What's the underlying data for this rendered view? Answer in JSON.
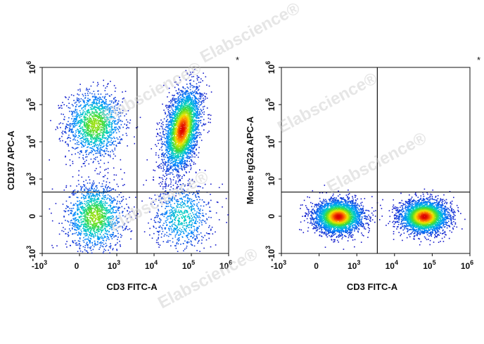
{
  "watermark": "Elabscience®",
  "chart_data": [
    {
      "type": "scatter",
      "subtype": "flow-cytometry-density-dot-plot",
      "xlabel": "CD3 FITC-A",
      "ylabel": "CD197 APC-A",
      "marker": "*",
      "x_scale": "biexponential",
      "y_scale": "biexponential",
      "xlim": [
        -1000,
        1000000
      ],
      "ylim": [
        -1000,
        1000000
      ],
      "x_ticks": [
        {
          "base": "-10",
          "exp": "3",
          "value": -1000
        },
        {
          "base": "0",
          "exp": "",
          "value": 0
        },
        {
          "base": "10",
          "exp": "3",
          "value": 1000
        },
        {
          "base": "10",
          "exp": "4",
          "value": 10000
        },
        {
          "base": "10",
          "exp": "5",
          "value": 100000
        },
        {
          "base": "10",
          "exp": "6",
          "value": 1000000
        }
      ],
      "y_ticks": [
        {
          "base": "-10",
          "exp": "3",
          "value": -1000
        },
        {
          "base": "0",
          "exp": "",
          "value": 0
        },
        {
          "base": "10",
          "exp": "3",
          "value": 1000
        },
        {
          "base": "10",
          "exp": "4",
          "value": 10000
        },
        {
          "base": "10",
          "exp": "5",
          "value": 100000
        },
        {
          "base": "10",
          "exp": "6",
          "value": 1000000
        }
      ],
      "quadrant_gate": {
        "x": 3500,
        "y": 650
      },
      "populations": [
        {
          "x_center": 400,
          "y_center": 30000,
          "spread": "medium",
          "density": "medium"
        },
        {
          "x_center": 400,
          "y_center": 0,
          "spread": "medium",
          "density": "medium"
        },
        {
          "x_center": 55000,
          "y_center": 22000,
          "spread": "elongated",
          "density": "high"
        },
        {
          "x_center": 55000,
          "y_center": 0,
          "spread": "medium",
          "density": "low"
        }
      ]
    },
    {
      "type": "scatter",
      "subtype": "flow-cytometry-density-dot-plot",
      "xlabel": "CD3 FITC-A",
      "ylabel": "Mouse IgG2a APC-A",
      "marker": "*",
      "x_scale": "biexponential",
      "y_scale": "biexponential",
      "xlim": [
        -1000,
        1000000
      ],
      "ylim": [
        -1000,
        1000000
      ],
      "x_ticks": [
        {
          "base": "-10",
          "exp": "3",
          "value": -1000
        },
        {
          "base": "0",
          "exp": "",
          "value": 0
        },
        {
          "base": "10",
          "exp": "3",
          "value": 1000
        },
        {
          "base": "10",
          "exp": "4",
          "value": 10000
        },
        {
          "base": "10",
          "exp": "5",
          "value": 100000
        },
        {
          "base": "10",
          "exp": "6",
          "value": 1000000
        }
      ],
      "y_ticks": [
        {
          "base": "-10",
          "exp": "3",
          "value": -1000
        },
        {
          "base": "0",
          "exp": "",
          "value": 0
        },
        {
          "base": "10",
          "exp": "3",
          "value": 1000
        },
        {
          "base": "10",
          "exp": "4",
          "value": 10000
        },
        {
          "base": "10",
          "exp": "5",
          "value": 100000
        },
        {
          "base": "10",
          "exp": "6",
          "value": 1000000
        }
      ],
      "quadrant_gate": {
        "x": 3500,
        "y": 650
      },
      "populations": [
        {
          "x_center": 500,
          "y_center": 0,
          "spread": "compact",
          "density": "high"
        },
        {
          "x_center": 60000,
          "y_center": 0,
          "spread": "compact",
          "density": "high"
        }
      ]
    }
  ]
}
